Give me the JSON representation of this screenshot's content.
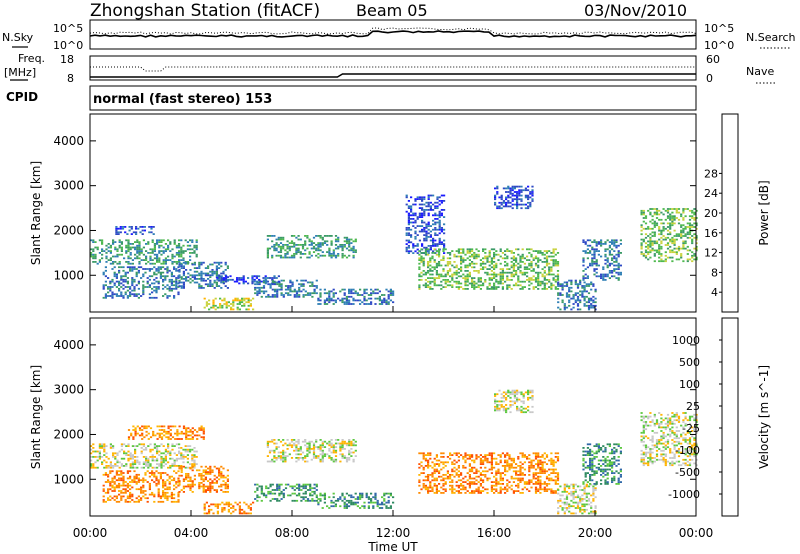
{
  "header": {
    "title": "Zhongshan Station (fitACF)",
    "beam": "Beam 05",
    "date": "03/Nov/2010"
  },
  "top_panels": {
    "nsky_label": "N.Sky",
    "nsearch_label": "N.Search",
    "noise_ticks_left": [
      "10^5",
      "10^0"
    ],
    "noise_ticks_right": [
      "10^5",
      "10^0"
    ],
    "freq_label_1": "Freq.",
    "freq_label_2": "[MHz]",
    "freq_ticks": [
      "18",
      "8"
    ],
    "nave_label": "Nave",
    "nave_ticks": [
      "60",
      "0"
    ],
    "cpid_label": "CPID",
    "cpid_text": "normal (fast stereo) 153"
  },
  "chart_data": [
    {
      "type": "heatmap",
      "name": "power-panel",
      "ylabel": "Slant Range [km]",
      "yticks": [
        "1000",
        "2000",
        "3000",
        "4000"
      ],
      "ylim": [
        180,
        4600
      ],
      "xlim_hours": [
        0,
        24
      ],
      "colorbar": {
        "label": "Power [dB]",
        "ticks": [
          "4",
          "8",
          "12",
          "16",
          "20",
          "24",
          "28"
        ],
        "colors": [
          "#1a1aff",
          "#2e49c4",
          "#2f7fb5",
          "#3a9a66",
          "#4db84d",
          "#c8d23c",
          "#ffb400",
          "#ff6d00",
          "#ff3000",
          "#e60000"
        ]
      },
      "echo_regions": [
        {
          "t0": 0.0,
          "t1": 4.2,
          "r0": 1250,
          "r1": 1800,
          "level": 3
        },
        {
          "t0": 0.5,
          "t1": 3.5,
          "r0": 500,
          "r1": 1200,
          "level": 2
        },
        {
          "t0": 1.0,
          "t1": 2.5,
          "r0": 1900,
          "r1": 2100,
          "level": 1
        },
        {
          "t0": 3.5,
          "t1": 5.5,
          "r0": 700,
          "r1": 1300,
          "level": 2
        },
        {
          "t0": 4.5,
          "t1": 6.5,
          "r0": 250,
          "r1": 500,
          "level": 5
        },
        {
          "t0": 5.0,
          "t1": 7.5,
          "r0": 800,
          "r1": 1000,
          "level": 1
        },
        {
          "t0": 6.5,
          "t1": 9.0,
          "r0": 500,
          "r1": 900,
          "level": 2
        },
        {
          "t0": 7.0,
          "t1": 10.5,
          "r0": 1400,
          "r1": 1900,
          "level": 3
        },
        {
          "t0": 9.0,
          "t1": 12.0,
          "r0": 350,
          "r1": 700,
          "level": 2
        },
        {
          "t0": 12.5,
          "t1": 14.0,
          "r0": 1500,
          "r1": 2800,
          "level": 1
        },
        {
          "t0": 13.0,
          "t1": 18.5,
          "r0": 700,
          "r1": 1600,
          "level": 4
        },
        {
          "t0": 16.0,
          "t1": 17.5,
          "r0": 2500,
          "r1": 3000,
          "level": 1
        },
        {
          "t0": 18.5,
          "t1": 20.0,
          "r0": 250,
          "r1": 900,
          "level": 2
        },
        {
          "t0": 19.5,
          "t1": 21.0,
          "r0": 900,
          "r1": 1800,
          "level": 2
        },
        {
          "t0": 21.8,
          "t1": 24.0,
          "r0": 1300,
          "r1": 2500,
          "level": 4
        }
      ]
    },
    {
      "type": "heatmap",
      "name": "velocity-panel",
      "xlabel": "Time UT",
      "ylabel": "Slant Range [km]",
      "yticks": [
        "1000",
        "2000",
        "3000",
        "4000"
      ],
      "ylim": [
        180,
        4600
      ],
      "xlim_hours": [
        0,
        24
      ],
      "xticks": [
        "00:00",
        "04:00",
        "08:00",
        "12:00",
        "16:00",
        "20:00",
        "00:00"
      ],
      "colorbar": {
        "label": "Velocity [m s^-1]",
        "ticks": [
          "1000",
          "500",
          "100",
          "25",
          "-25",
          "-100",
          "-500",
          "-1000"
        ],
        "colors": [
          "#2840c8",
          "#3068a8",
          "#2e8a60",
          "#5cc840",
          "#c8c8c8",
          "#ffb400",
          "#ff8a00",
          "#ff5000",
          "#e60000"
        ]
      },
      "echo_regions": [
        {
          "t0": 0.0,
          "t1": 4.2,
          "r0": 1250,
          "r1": 1800,
          "level": 4
        },
        {
          "t0": 1.5,
          "t1": 4.5,
          "r0": 1900,
          "r1": 2200,
          "level": 6
        },
        {
          "t0": 0.5,
          "t1": 3.5,
          "r0": 500,
          "r1": 1200,
          "level": 6
        },
        {
          "t0": 3.5,
          "t1": 5.5,
          "r0": 700,
          "r1": 1300,
          "level": 6
        },
        {
          "t0": 4.5,
          "t1": 6.5,
          "r0": 250,
          "r1": 500,
          "level": 6
        },
        {
          "t0": 6.5,
          "t1": 9.0,
          "r0": 500,
          "r1": 900,
          "level": 2
        },
        {
          "t0": 7.0,
          "t1": 10.5,
          "r0": 1400,
          "r1": 1900,
          "level": 4
        },
        {
          "t0": 9.0,
          "t1": 12.0,
          "r0": 350,
          "r1": 700,
          "level": 2
        },
        {
          "t0": 13.0,
          "t1": 18.5,
          "r0": 700,
          "r1": 1600,
          "level": 6
        },
        {
          "t0": 16.0,
          "t1": 17.5,
          "r0": 2500,
          "r1": 3000,
          "level": 4
        },
        {
          "t0": 18.5,
          "t1": 20.0,
          "r0": 250,
          "r1": 900,
          "level": 4
        },
        {
          "t0": 19.5,
          "t1": 21.0,
          "r0": 900,
          "r1": 1800,
          "level": 2
        },
        {
          "t0": 21.8,
          "t1": 24.0,
          "r0": 1300,
          "r1": 2500,
          "level": 4
        }
      ]
    }
  ]
}
